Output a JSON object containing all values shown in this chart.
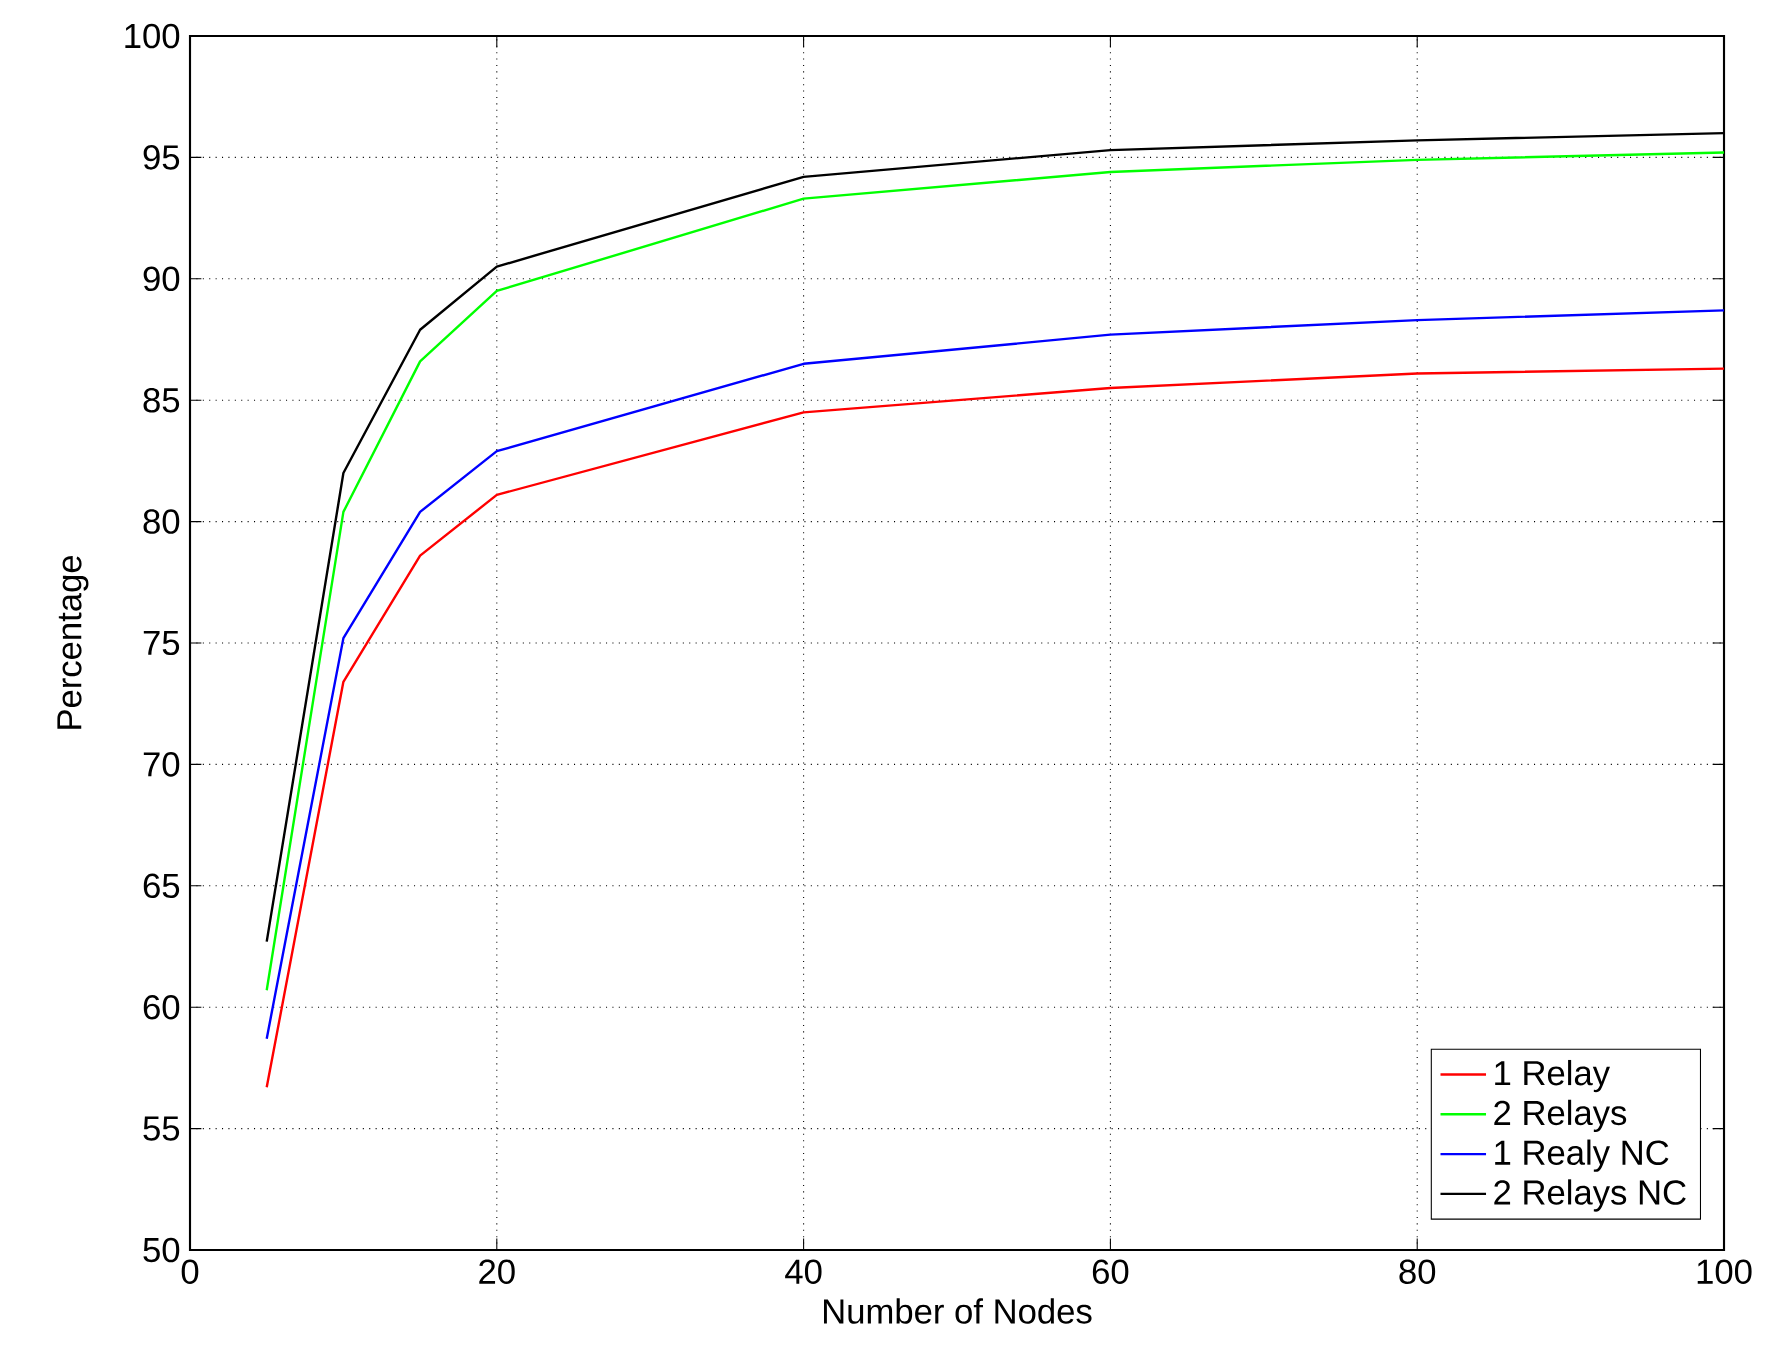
{
  "chart_data": {
    "type": "line",
    "xlabel": "Number of Nodes",
    "ylabel": "Percentage",
    "x": [
      5,
      10,
      15,
      20,
      40,
      60,
      80,
      100
    ],
    "series": [
      {
        "name": "1 Relay",
        "color": "#ff0000",
        "values": [
          56.7,
          73.4,
          78.6,
          81.1,
          84.5,
          85.5,
          86.1,
          86.3
        ]
      },
      {
        "name": "2 Relays",
        "color": "#00ff00",
        "values": [
          60.7,
          80.4,
          86.6,
          89.5,
          93.3,
          94.4,
          94.9,
          95.2
        ]
      },
      {
        "name": "1 Realy NC",
        "color": "#0000ff",
        "values": [
          58.7,
          75.2,
          80.4,
          82.9,
          86.5,
          87.7,
          88.3,
          88.7
        ]
      },
      {
        "name": "2 Relays NC",
        "color": "#000000",
        "values": [
          62.7,
          82.0,
          87.9,
          90.5,
          94.2,
          95.3,
          95.7,
          96.0
        ]
      }
    ],
    "xlim": [
      0,
      100
    ],
    "ylim": [
      50,
      100
    ],
    "xticks": [
      0,
      20,
      40,
      60,
      80,
      100
    ],
    "yticks": [
      50,
      55,
      60,
      65,
      70,
      75,
      80,
      85,
      90,
      95,
      100
    ],
    "grid": true,
    "legend": "bottom right",
    "line_style": "solid",
    "marker": "none"
  }
}
